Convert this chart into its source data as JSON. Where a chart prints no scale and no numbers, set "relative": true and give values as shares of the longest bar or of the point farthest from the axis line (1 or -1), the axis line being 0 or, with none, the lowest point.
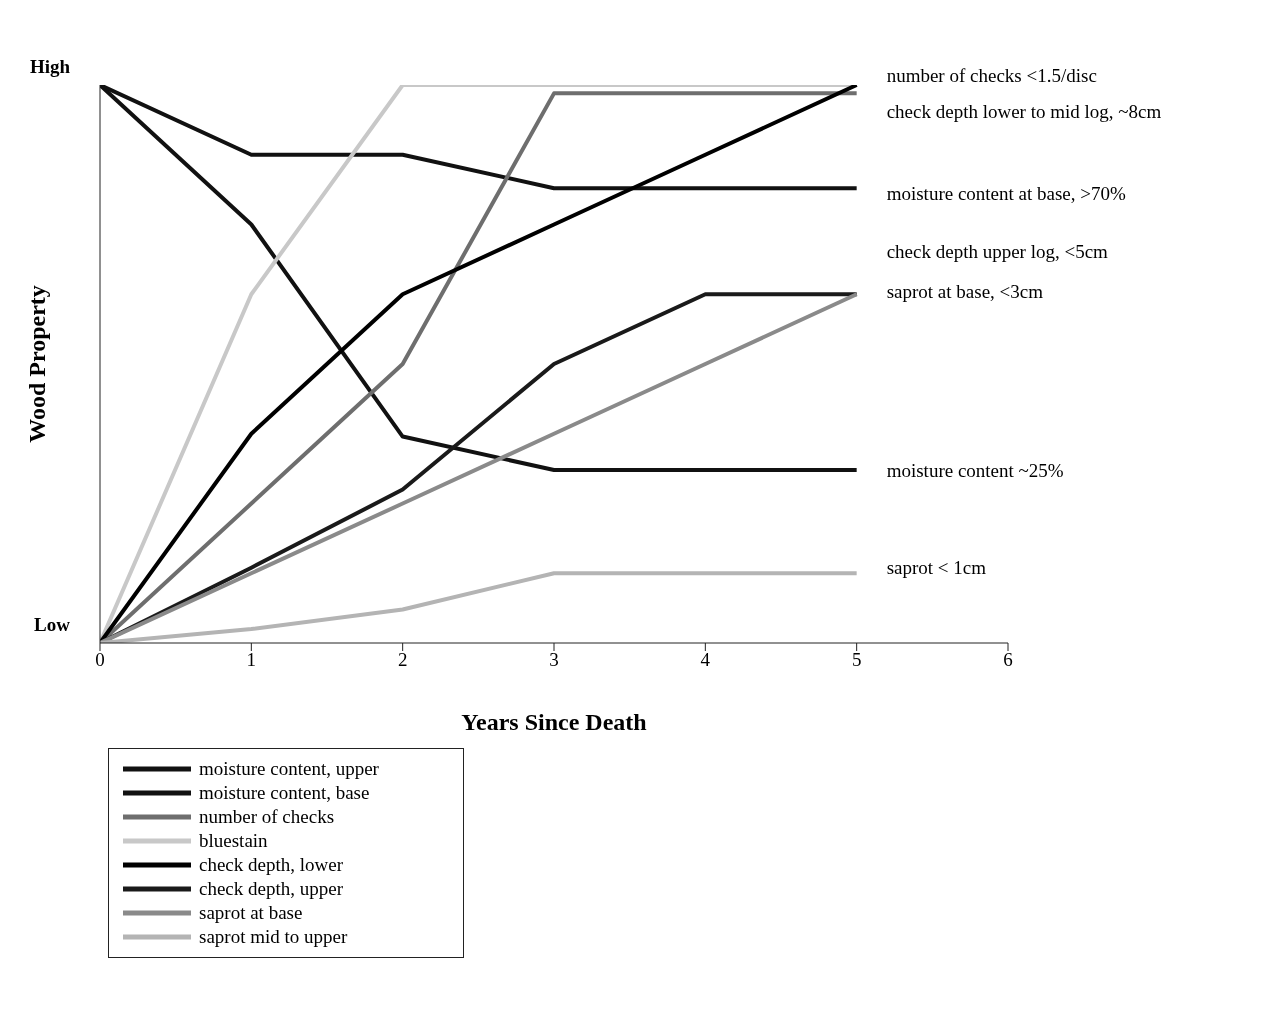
{
  "chart_data": {
    "type": "line",
    "relative": true,
    "xlabel": "Years Since Death",
    "ylabel": "Wood Property",
    "x": [
      0,
      1,
      2,
      3,
      4,
      5
    ],
    "xlim": [
      0,
      6
    ],
    "xticks": [
      0,
      1,
      2,
      3,
      4,
      5,
      6
    ],
    "legend": "bottom left",
    "marker": "none",
    "line_style": "solid",
    "series": [
      {
        "name": "moisture content, upper",
        "color": "#111111",
        "values": [
          1,
          0.75,
          0.37,
          0.31,
          0.31,
          0.31
        ]
      },
      {
        "name": "moisture content, base",
        "color": "#111111",
        "values": [
          1,
          0.875,
          0.875,
          0.815,
          0.815,
          0.815
        ]
      },
      {
        "name": "number of checks",
        "color": "#6e6e6e",
        "values": [
          0,
          0.25,
          0.5,
          0.985,
          0.985,
          0.985
        ]
      },
      {
        "name": "bluestain",
        "color": "#c8c8c8",
        "values": [
          0,
          0.625,
          1,
          1,
          1,
          1
        ]
      },
      {
        "name": "check depth, lower",
        "color": "#000000",
        "values": [
          0,
          0.375,
          0.625,
          0.75,
          0.875,
          1
        ]
      },
      {
        "name": "check depth, upper",
        "color": "#1a1a1a",
        "values": [
          0,
          0.135,
          0.275,
          0.5,
          0.625,
          0.625
        ]
      },
      {
        "name": "saprot at base",
        "color": "#8a8a8a",
        "values": [
          0,
          0.125,
          0.25,
          0.375,
          0.5,
          0.625
        ]
      },
      {
        "name": "saprot mid to upper",
        "color": "#b4b4b4",
        "values": [
          0,
          0.025,
          0.06,
          0.125,
          0.125,
          0.125
        ]
      }
    ],
    "annotations": [
      "High",
      "Low",
      "number of checks <1.5/disc",
      "check depth lower to mid log, ~8cm",
      "moisture content at base, >70%",
      "check depth upper log, <5cm",
      "saprot at base, <3cm",
      "moisture content ~25%",
      "saprot < 1cm"
    ]
  }
}
